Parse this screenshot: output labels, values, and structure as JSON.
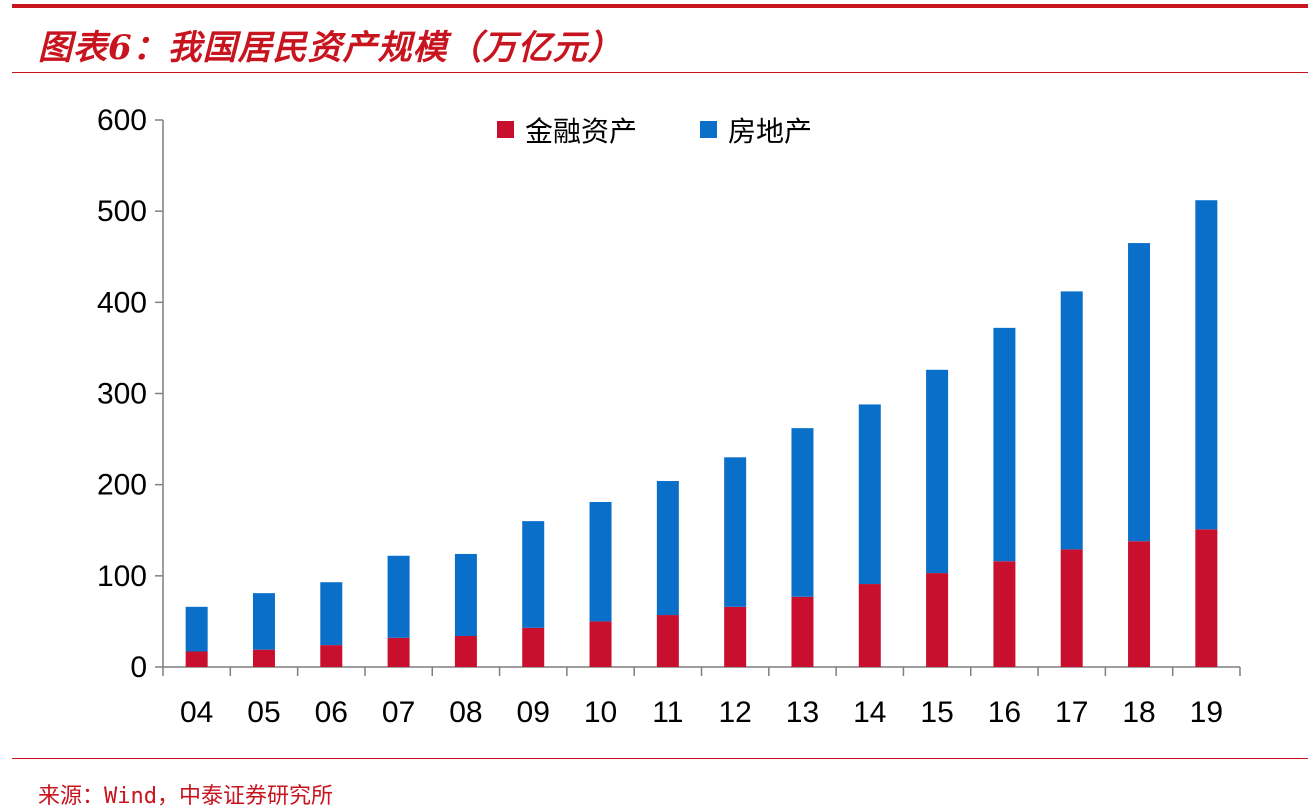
{
  "header": {
    "title": "图表6：我国居民资产规模（万亿元）"
  },
  "footer": {
    "source": "来源：Wind，中泰证券研究所"
  },
  "colors": {
    "financial": "#c8102e",
    "real_estate": "#0a6fc9",
    "accent": "#c8141e"
  },
  "chart_data": {
    "type": "bar",
    "stacked": true,
    "categories": [
      "04",
      "05",
      "06",
      "07",
      "08",
      "09",
      "10",
      "11",
      "12",
      "13",
      "14",
      "15",
      "16",
      "17",
      "18",
      "19"
    ],
    "series": [
      {
        "name": "金融资产",
        "color": "#c8102e",
        "values": [
          17,
          19,
          24,
          32,
          34,
          43,
          50,
          57,
          66,
          77,
          91,
          103,
          116,
          129,
          138,
          151
        ]
      },
      {
        "name": "房地产",
        "color": "#0a6fc9",
        "values": [
          49,
          62,
          69,
          90,
          90,
          117,
          131,
          147,
          164,
          185,
          197,
          223,
          256,
          283,
          327,
          361
        ]
      }
    ],
    "ylim": [
      0,
      600
    ],
    "yticks": [
      0,
      100,
      200,
      300,
      400,
      500,
      600
    ],
    "legend_position": "top-center",
    "grid": false
  }
}
